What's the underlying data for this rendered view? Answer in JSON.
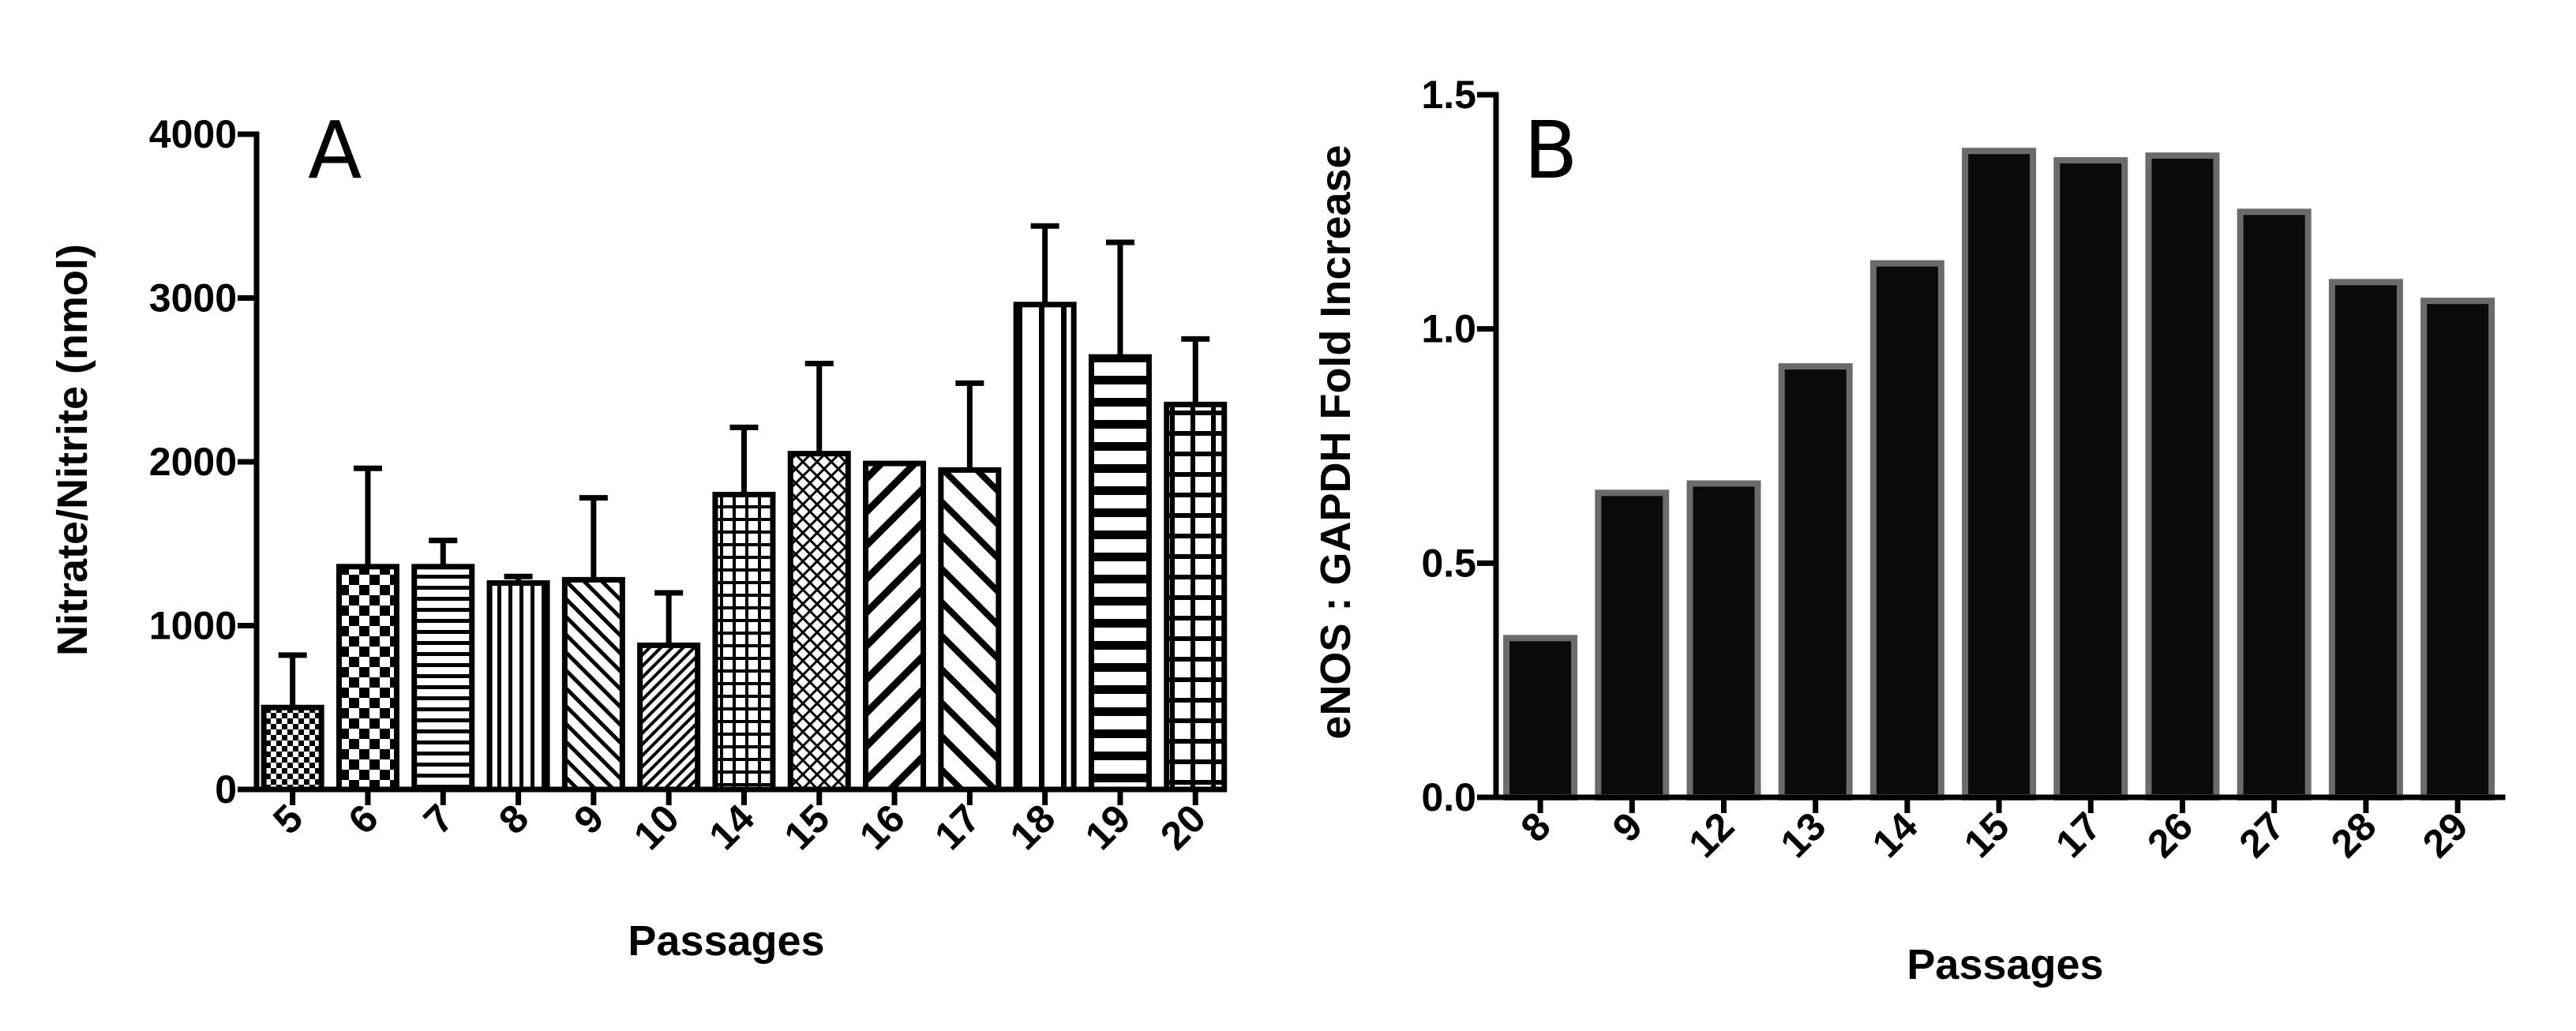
{
  "chart_data": [
    {
      "panel": "A",
      "type": "bar",
      "xlabel": "Passages",
      "ylabel": "Nitrate/Nitrite  (nmol)",
      "ylim": [
        0,
        4000
      ],
      "yticks": [
        "0",
        "1000",
        "2000",
        "3000",
        "4000"
      ],
      "categories": [
        "5",
        "6",
        "7",
        "8",
        "9",
        "10",
        "14",
        "15",
        "16",
        "17",
        "18",
        "19",
        "20"
      ],
      "values": [
        500,
        1360,
        1360,
        1260,
        1280,
        880,
        1800,
        2050,
        1990,
        1950,
        2960,
        2640,
        2350
      ],
      "errors": [
        320,
        600,
        160,
        40,
        500,
        320,
        410,
        550,
        0,
        530,
        480,
        700,
        400
      ],
      "fill_patterns": [
        "checker-small",
        "checker-large",
        "horizontal",
        "vertical",
        "diagonal-up",
        "diagonal-down-dense",
        "grid",
        "crosshatch",
        "diagonal-down",
        "diagonal-up-wide",
        "vertical-wide",
        "horizontal-wide",
        "grid-wide"
      ],
      "grid": false,
      "legend": "none"
    },
    {
      "panel": "B",
      "type": "bar",
      "xlabel": "Passages",
      "ylabel": "eNOS : GAPDH Fold Increase",
      "ylim": [
        0,
        1.5
      ],
      "yticks": [
        "0.0",
        "0.5",
        "1.0",
        "1.5"
      ],
      "categories": [
        "8",
        "9",
        "12",
        "13",
        "14",
        "15",
        "17",
        "26",
        "27",
        "28",
        "29"
      ],
      "values": [
        0.34,
        0.65,
        0.67,
        0.92,
        1.14,
        1.38,
        1.36,
        1.37,
        1.25,
        1.1,
        1.06
      ],
      "bar_color": "#0a0a0a",
      "bar_edge_color": "#6b6b6b",
      "grid": false,
      "legend": "none"
    }
  ]
}
